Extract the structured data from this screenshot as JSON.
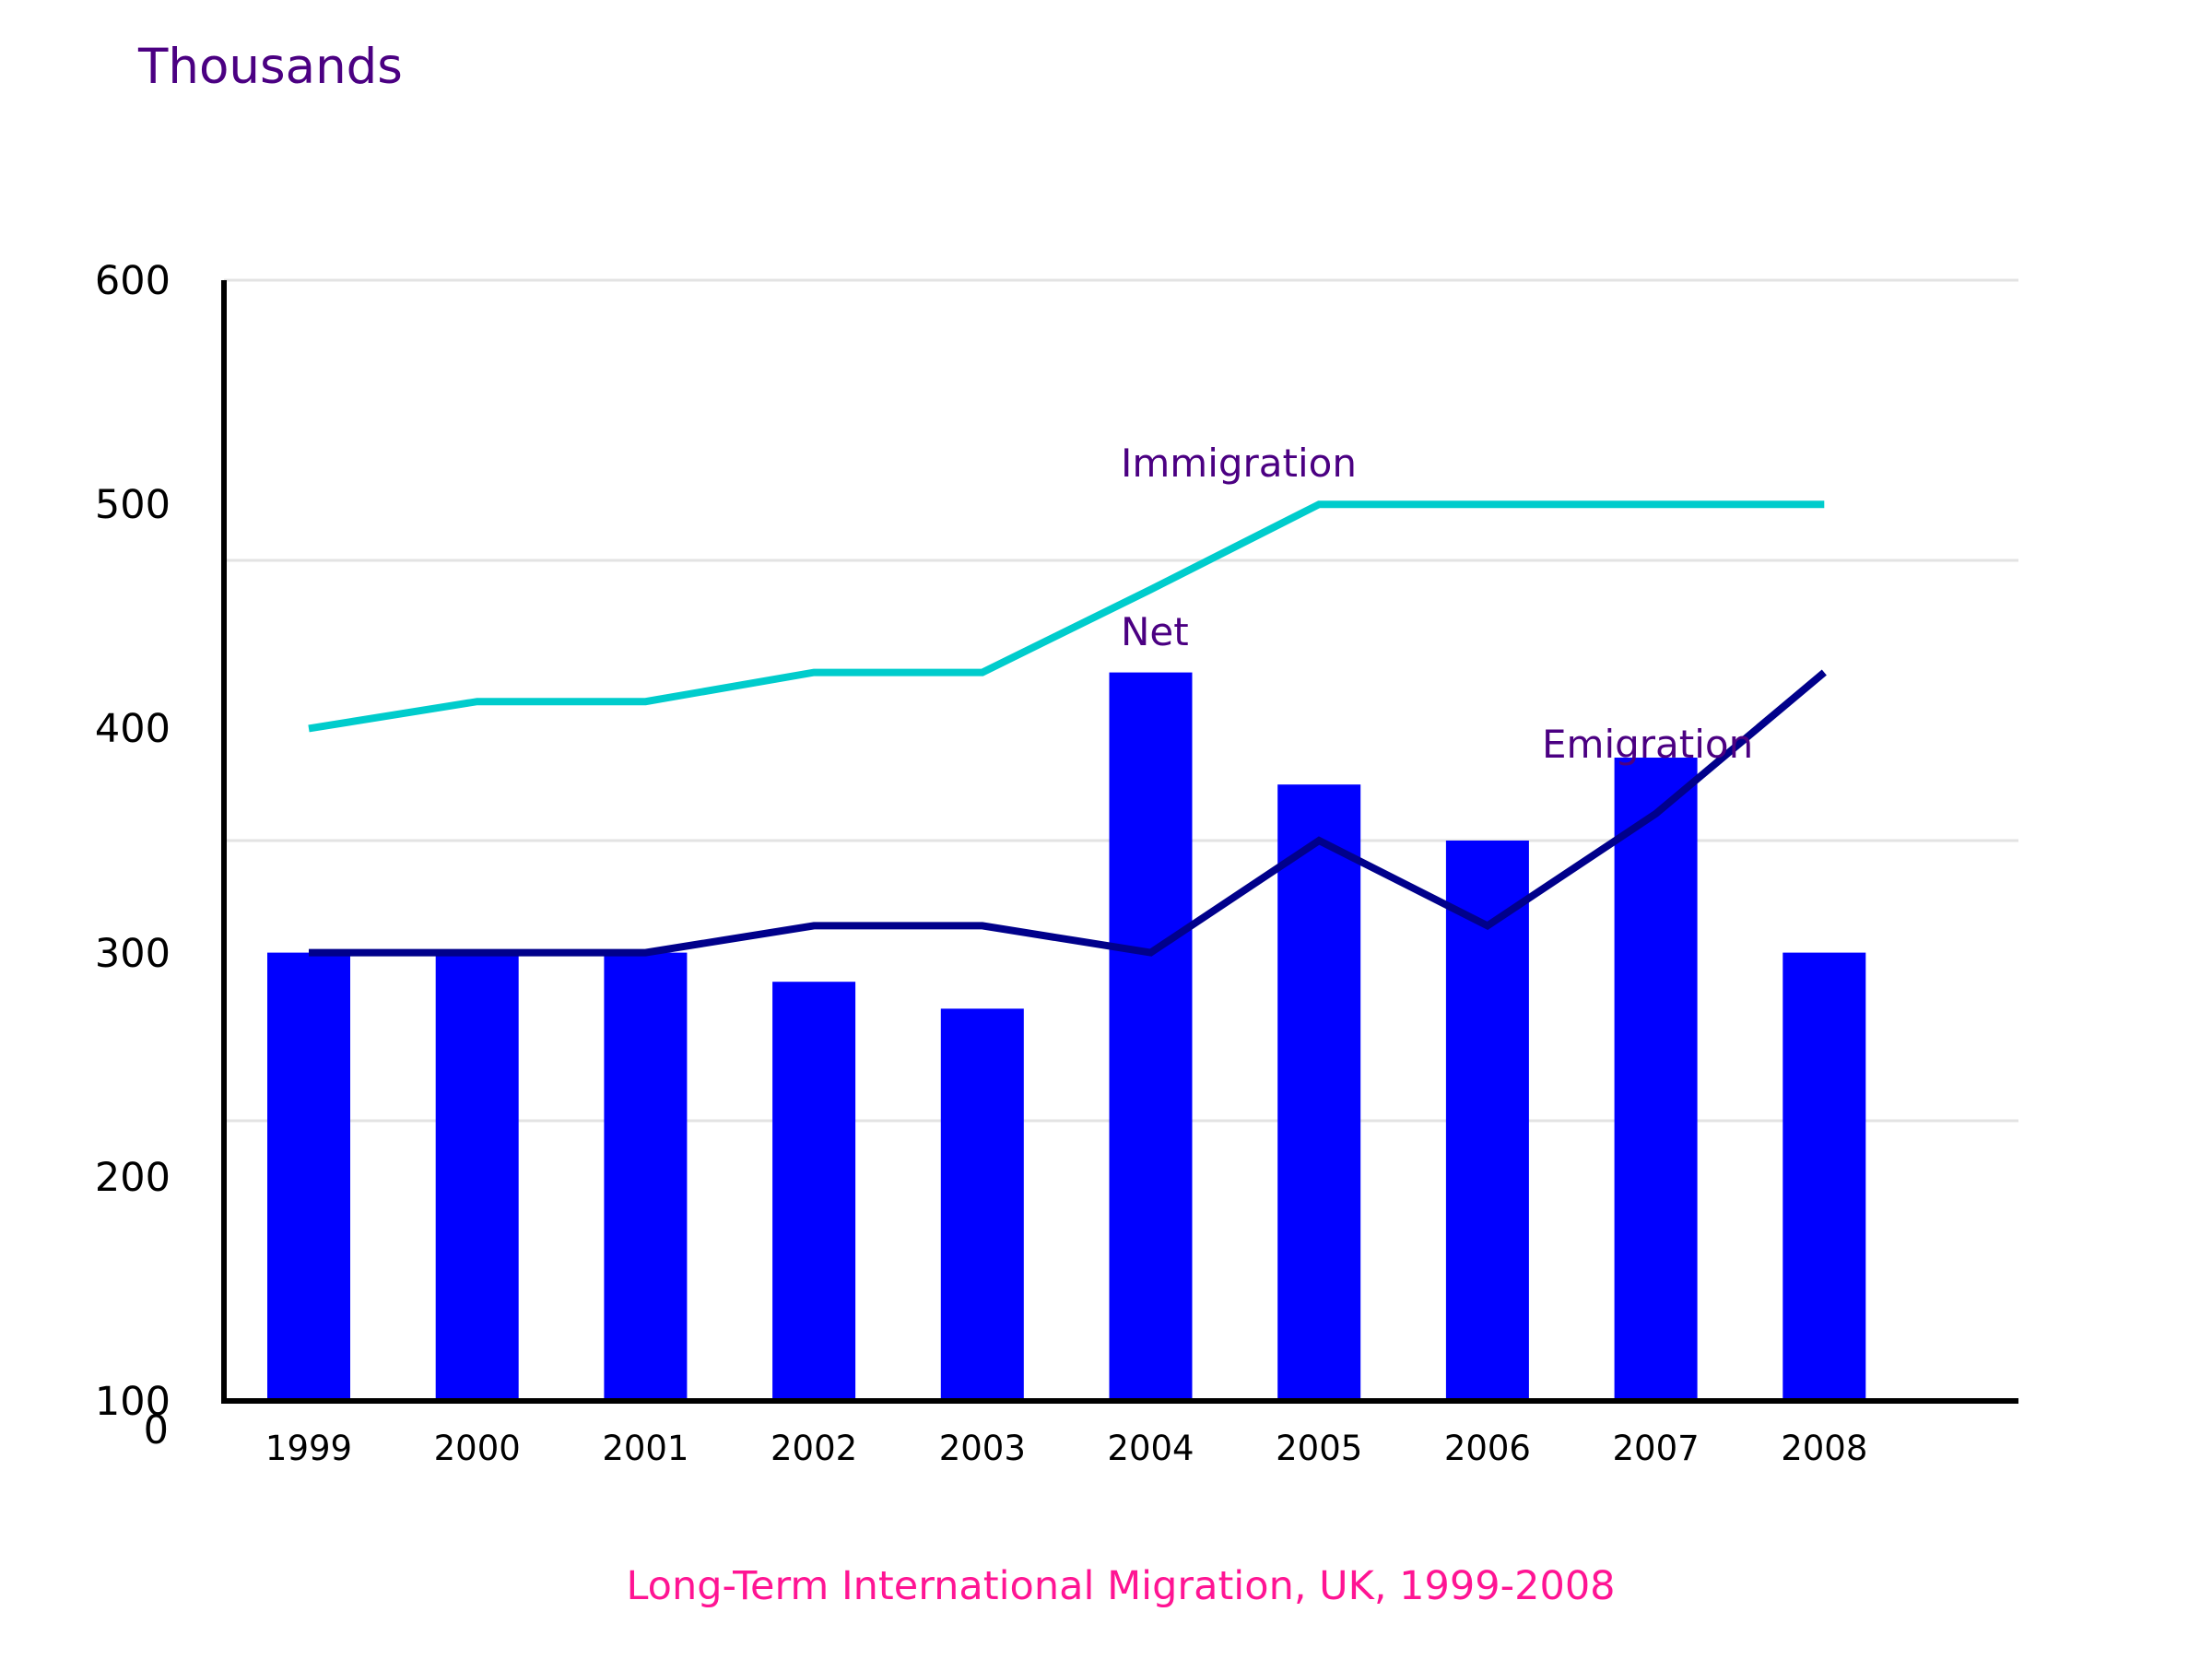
{
  "chart_data": {
    "type": "bar",
    "unit_label": "Thousands",
    "caption": "Long-Term International Migration, UK, 1999-2008",
    "y_ticks": [
      "600",
      "500",
      "400",
      "300",
      "200",
      "100",
      "0"
    ],
    "x_ticks": [
      "1999",
      "2000",
      "2001",
      "2002",
      "2003",
      "2004",
      "2005",
      "2006",
      "2007",
      "2008"
    ],
    "categories": [
      "1999",
      "2000",
      "2001",
      "2002",
      "2003",
      "2004",
      "2005",
      "2006",
      "2007",
      "2008"
    ],
    "series": [
      {
        "name": "Net",
        "kind": "bar",
        "values": [
          300,
          300,
          300,
          287,
          275,
          425,
          375,
          350,
          387,
          300
        ]
      },
      {
        "name": "Immigration",
        "kind": "line",
        "values": [
          400,
          412,
          412,
          425,
          425,
          462,
          500,
          500,
          500,
          500
        ]
      },
      {
        "name": "Emigration",
        "kind": "line",
        "values": [
          300,
          300,
          300,
          312,
          312,
          300,
          350,
          312,
          362,
          425
        ]
      }
    ],
    "grid": true,
    "colors": {
      "Net": "#0000ff",
      "Immigration": "#00cccc",
      "Emigration": "#00008b",
      "unit_label": "#4b0082",
      "series_label": "#4b0082",
      "caption": "#ff1493",
      "grid": "#e3e3e3"
    }
  }
}
